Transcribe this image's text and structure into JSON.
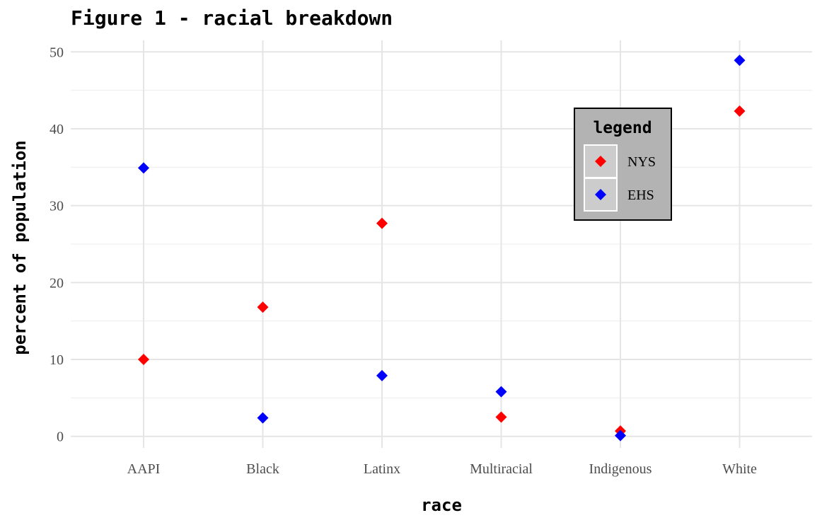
{
  "chart_data": {
    "type": "scatter",
    "title": "Figure 1 - racial breakdown",
    "xlabel": "race",
    "ylabel": "percent of population",
    "categories": [
      "AAPI",
      "Black",
      "Latinx",
      "Multiracial",
      "Indigenous",
      "White"
    ],
    "ylim": [
      -1.5,
      51.5
    ],
    "yticks": [
      0,
      10,
      20,
      30,
      40,
      50
    ],
    "ytick_labels": [
      "0",
      "10",
      "20",
      "30",
      "40",
      "50"
    ],
    "grid": true,
    "legend": {
      "title": "legend",
      "placement": "inside-top-right",
      "background": "#b3b3b3"
    },
    "series": [
      {
        "name": "NYS",
        "color": "#ff0000",
        "marker": "diamond",
        "values": [
          10.0,
          16.8,
          27.7,
          2.5,
          0.7,
          42.3
        ]
      },
      {
        "name": "EHS",
        "color": "#0000ff",
        "marker": "diamond",
        "values": [
          34.9,
          2.4,
          7.9,
          5.8,
          0.1,
          48.9
        ]
      }
    ]
  }
}
